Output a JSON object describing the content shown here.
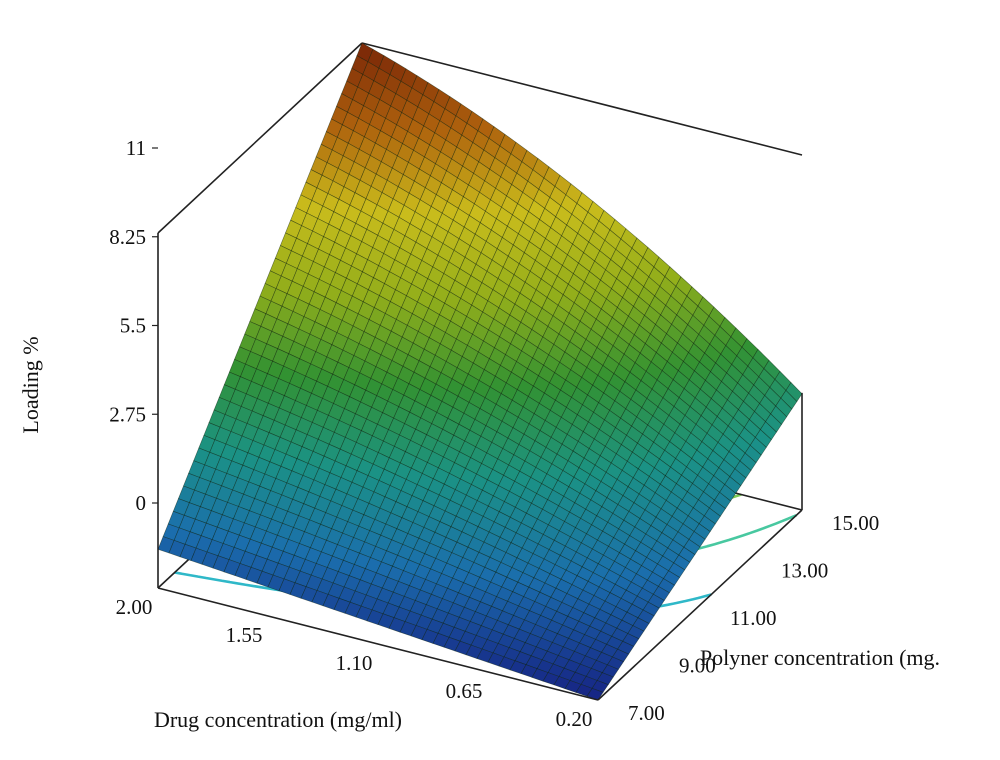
{
  "chart_data": {
    "type": "surface3d",
    "title": "",
    "zlabel": "Loading %",
    "xlabel": "Drug concentration (mg/ml)",
    "ylabel": "Polyner concentration (mg.",
    "x_ticks": [
      "2.00",
      "1.55",
      "1.10",
      "0.65",
      "0.20"
    ],
    "y_ticks": [
      "7.00",
      "9.00",
      "11.00",
      "13.00",
      "15.00"
    ],
    "z_ticks": [
      "0",
      "2.75",
      "5.5",
      "8.25",
      "11"
    ],
    "xlim": [
      0.2,
      2.0
    ],
    "ylim": [
      7.0,
      15.0
    ],
    "zlim": [
      0,
      11
    ],
    "surface_corners": [
      {
        "x": 2.0,
        "y": 15.0,
        "z": 11.0
      },
      {
        "x": 0.2,
        "y": 15.0,
        "z": 3.6
      },
      {
        "x": 2.0,
        "y": 7.0,
        "z": 1.2
      },
      {
        "x": 0.2,
        "y": 7.0,
        "z": 0.0
      }
    ],
    "contour_levels": [
      2.0,
      3.5,
      5.0,
      6.5,
      8.0
    ],
    "colormap": [
      "#1a2a9a",
      "#1f7fc8",
      "#1fa89a",
      "#3aa83a",
      "#a8c81f",
      "#e8d820",
      "#c8700f",
      "#8a2a08"
    ]
  }
}
